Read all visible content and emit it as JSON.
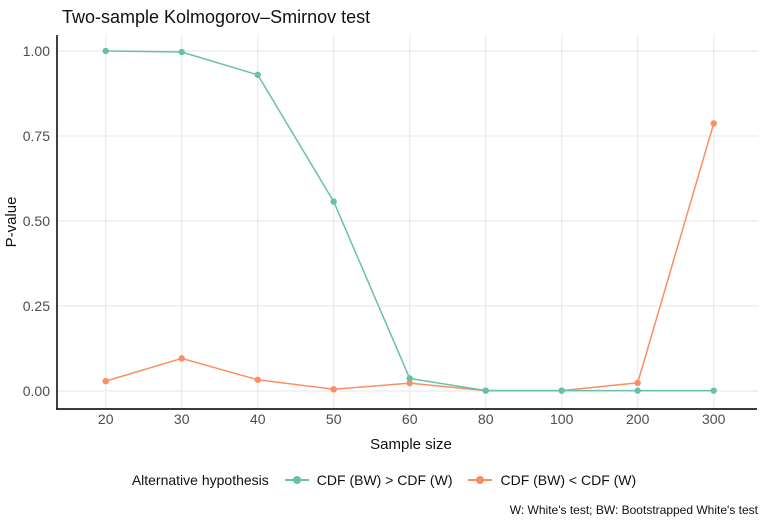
{
  "title": "Two-sample Kolmogorov–Smirnov test",
  "axes": {
    "x_label": "Sample size",
    "y_label": "P-value"
  },
  "legend": {
    "title": "Alternative hypothesis",
    "entries": [
      {
        "label": "CDF (BW) > CDF (W)",
        "color": "#66C2A5"
      },
      {
        "label": "CDF (BW) < CDF (W)",
        "color": "#FC8D62"
      }
    ]
  },
  "caption": "W: White's test; BW: Bootstrapped White's test",
  "colors": {
    "series_green": "#66C2A5",
    "series_orange": "#FC8D62",
    "gridline": "#EBEBEB",
    "axis_line": "#1f1f1f",
    "tick_text": "#4D4D4D",
    "text": "#111111"
  },
  "chart_data": {
    "type": "line",
    "title": "Two-sample Kolmogorov–Smirnov test",
    "xlabel": "Sample size",
    "ylabel": "P-value",
    "x_axis_type": "categorical-equal-spacing",
    "categories": [
      20,
      30,
      40,
      50,
      60,
      80,
      100,
      200,
      300
    ],
    "yticks": [
      0.0,
      0.25,
      0.5,
      0.75,
      1.0
    ],
    "ylim": [
      0,
      1
    ],
    "grid": "major-only",
    "legend_position": "bottom",
    "legend_title": "Alternative hypothesis",
    "series": [
      {
        "name": "CDF (BW) > CDF (W)",
        "color": "#66C2A5",
        "values": [
          1.0,
          0.997,
          0.93,
          0.557,
          0.037,
          0.001,
          0.001,
          0.001,
          0.001
        ]
      },
      {
        "name": "CDF (BW) < CDF (W)",
        "color": "#FC8D62",
        "values": [
          0.029,
          0.096,
          0.033,
          0.005,
          0.023,
          0.001,
          0.001,
          0.024,
          0.787
        ]
      }
    ]
  }
}
